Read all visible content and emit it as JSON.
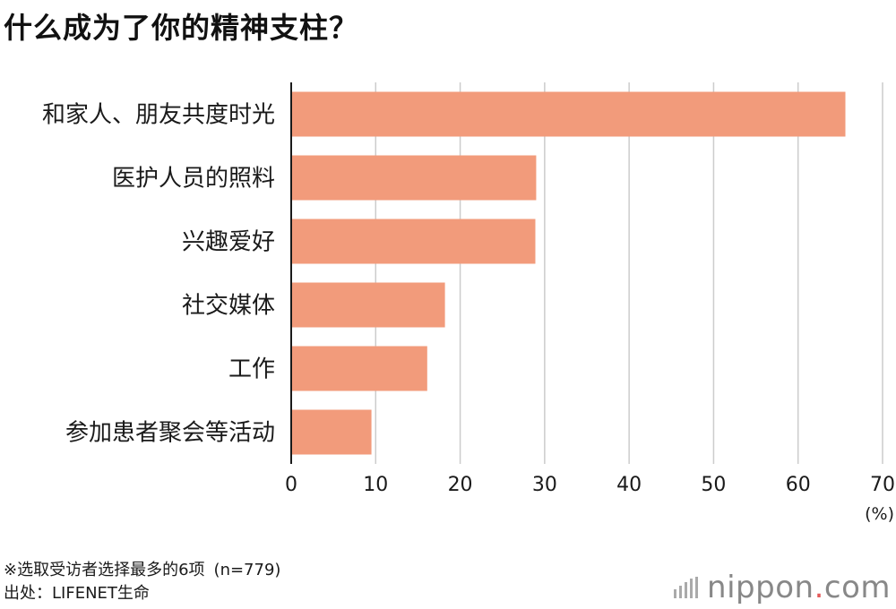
{
  "title": "什么成为了你的精神支柱？",
  "chart_data": {
    "type": "bar",
    "orientation": "horizontal",
    "categories": [
      "和家人、朋友共度时光",
      "医护人员的照料",
      "兴趣爱好",
      "社交媒体",
      "工作",
      "参加患者聚会等活动"
    ],
    "values": [
      65.6,
      29.0,
      28.9,
      18.2,
      16.1,
      9.5
    ],
    "xlim": [
      0,
      70
    ],
    "xticks": [
      0,
      10,
      20,
      30,
      40,
      50,
      60,
      70
    ],
    "unit": "(%)",
    "grid": true,
    "bar_color": "#f29b7b",
    "grid_color": "#cccccc",
    "axis_color": "#1a1a1a"
  },
  "footnote": "※选取受访者选择最多的6项",
  "sample": "(n=779)",
  "source": "出处：LIFENET生命",
  "logo": {
    "main": "nippon",
    "dot": ".",
    "tld": "com"
  }
}
